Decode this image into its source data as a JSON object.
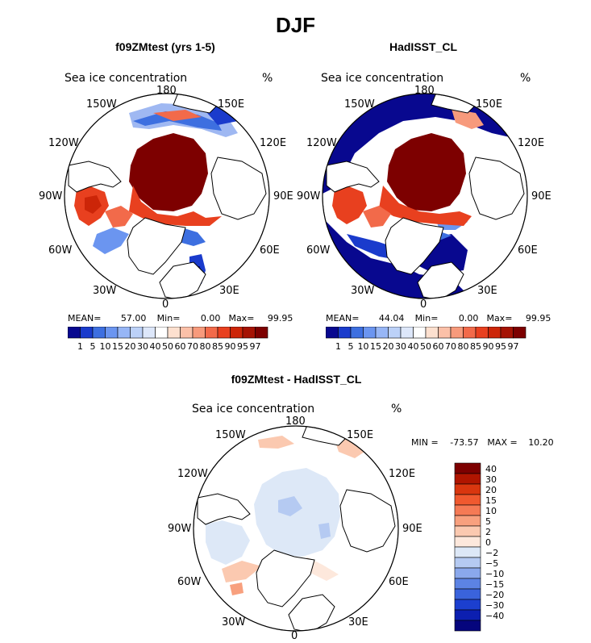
{
  "main_title": "DJF",
  "panels": [
    {
      "title": "f09ZMtest (yrs 1-5)",
      "variable": "Sea ice concentration",
      "units": "%",
      "labels": {
        "top": "180",
        "bottom": "0",
        "left": "90W",
        "right": "90E",
        "ul": "150W",
        "ur": "150E",
        "ml": "120W",
        "mr": "120E",
        "ll": "60W",
        "lr": "60E",
        "bl": "30W",
        "br": "30E"
      },
      "stats": {
        "mean_label": "MEAN=",
        "mean": "57.00",
        "min_label": "Min=",
        "min": "0.00",
        "max_label": "Max=",
        "max": "99.95"
      }
    },
    {
      "title": "HadISST_CL",
      "variable": "Sea ice concentration",
      "units": "%",
      "labels": {
        "top": "180",
        "bottom": "0",
        "left": "90W",
        "right": "90E",
        "ul": "150W",
        "ur": "150E",
        "ml": "120W",
        "mr": "120E",
        "ll": "60W",
        "lr": "60E",
        "bl": "30W",
        "br": "30E"
      },
      "stats": {
        "mean_label": "MEAN=",
        "mean": "44.04",
        "min_label": "Min=",
        "min": "0.00",
        "max_label": "Max=",
        "max": "99.95"
      }
    },
    {
      "title": "f09ZMtest - HadISST_CL",
      "variable": "Sea ice concentration",
      "units": "%",
      "labels": {
        "top": "180",
        "bottom": "0",
        "left": "90W",
        "right": "90E",
        "ul": "150W",
        "ur": "150E",
        "ml": "120W",
        "mr": "120E",
        "ll": "60W",
        "lr": "60E",
        "bl": "30W",
        "br": "30E"
      },
      "stats": {
        "min_label": "MIN =",
        "min": "-73.57",
        "max_label": "MAX =",
        "max": "10.20"
      }
    }
  ],
  "colorbar_concentration": {
    "labels": [
      "1",
      "5",
      "10",
      "15",
      "20",
      "30",
      "40",
      "50",
      "60",
      "70",
      "80",
      "85",
      "90",
      "95",
      "97"
    ],
    "colors": [
      "#08088f",
      "#1a3bcc",
      "#3d6fe0",
      "#6b95f0",
      "#97b6f6",
      "#bcd1f8",
      "#dde7fa",
      "#ffffff",
      "#fde0cf",
      "#fbc0a8",
      "#f79a7c",
      "#f26a4a",
      "#e8401f",
      "#cc2508",
      "#a51304",
      "#7d0000"
    ]
  },
  "colorbar_difference": {
    "labels": [
      "40",
      "30",
      "20",
      "15",
      "10",
      "5",
      "2",
      "0",
      "−2",
      "−5",
      "−10",
      "−15",
      "−20",
      "−30",
      "−40"
    ],
    "colors": [
      "#7d0000",
      "#b01500",
      "#d9360f",
      "#f0592f",
      "#f57a55",
      "#f8a07e",
      "#fbc9b0",
      "#fde8dc",
      "#dde8f7",
      "#b5caf2",
      "#8aa8ec",
      "#5c83e4",
      "#3a63dc",
      "#1c3fcf",
      "#0c1fb0",
      "#05057d"
    ]
  },
  "chart_data": [
    {
      "type": "heatmap",
      "title": "f09ZMtest (yrs 1-5)",
      "variable": "Sea ice concentration",
      "units": "%",
      "mean": 57.0,
      "min": 0.0,
      "max": 99.95,
      "levels": [
        1,
        5,
        10,
        15,
        20,
        30,
        40,
        50,
        60,
        70,
        80,
        85,
        90,
        95,
        97
      ]
    },
    {
      "type": "heatmap",
      "title": "HadISST_CL",
      "variable": "Sea ice concentration",
      "units": "%",
      "mean": 44.04,
      "min": 0.0,
      "max": 99.95,
      "levels": [
        1,
        5,
        10,
        15,
        20,
        30,
        40,
        50,
        60,
        70,
        80,
        85,
        90,
        95,
        97
      ]
    },
    {
      "type": "heatmap",
      "title": "f09ZMtest - HadISST_CL",
      "variable": "Sea ice concentration",
      "units": "%",
      "min": -73.57,
      "max": 10.2,
      "levels": [
        40,
        30,
        20,
        15,
        10,
        5,
        2,
        0,
        -2,
        -5,
        -10,
        -15,
        -20,
        -30,
        -40
      ]
    }
  ]
}
